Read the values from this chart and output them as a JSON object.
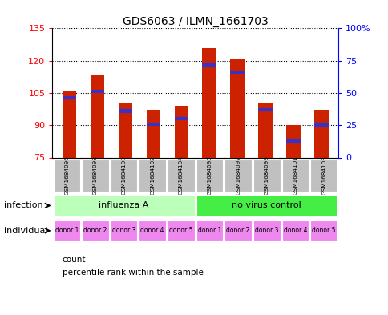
{
  "title": "GDS6063 / ILMN_1661703",
  "samples": [
    "GSM1684096",
    "GSM1684098",
    "GSM1684100",
    "GSM1684102",
    "GSM1684104",
    "GSM1684095",
    "GSM1684097",
    "GSM1684099",
    "GSM1684101",
    "GSM1684103"
  ],
  "counts": [
    106,
    113,
    100,
    97,
    99,
    126,
    121,
    100,
    90,
    97
  ],
  "percentiles": [
    46,
    51,
    36,
    26,
    30,
    72,
    66,
    37,
    13,
    25
  ],
  "y_min": 75,
  "y_max": 135,
  "y_ticks": [
    75,
    90,
    105,
    120,
    135
  ],
  "pct_right_ticks": [
    0,
    25,
    50,
    75,
    100
  ],
  "infection_groups": [
    {
      "label": "influenza A",
      "start": 0,
      "end": 4,
      "color": "#bbffbb"
    },
    {
      "label": "no virus control",
      "start": 5,
      "end": 9,
      "color": "#44ee44"
    }
  ],
  "individual_labels": [
    "donor 1",
    "donor 2",
    "donor 3",
    "donor 4",
    "donor 5",
    "donor 1",
    "donor 2",
    "donor 3",
    "donor 4",
    "donor 5"
  ],
  "individual_color": "#ee88ee",
  "bar_color": "#cc2200",
  "blue_color": "#3333cc",
  "sample_bg_color": "#c0c0c0",
  "bar_width": 0.5,
  "legend_count_label": "count",
  "legend_pct_label": "percentile rank within the sample"
}
